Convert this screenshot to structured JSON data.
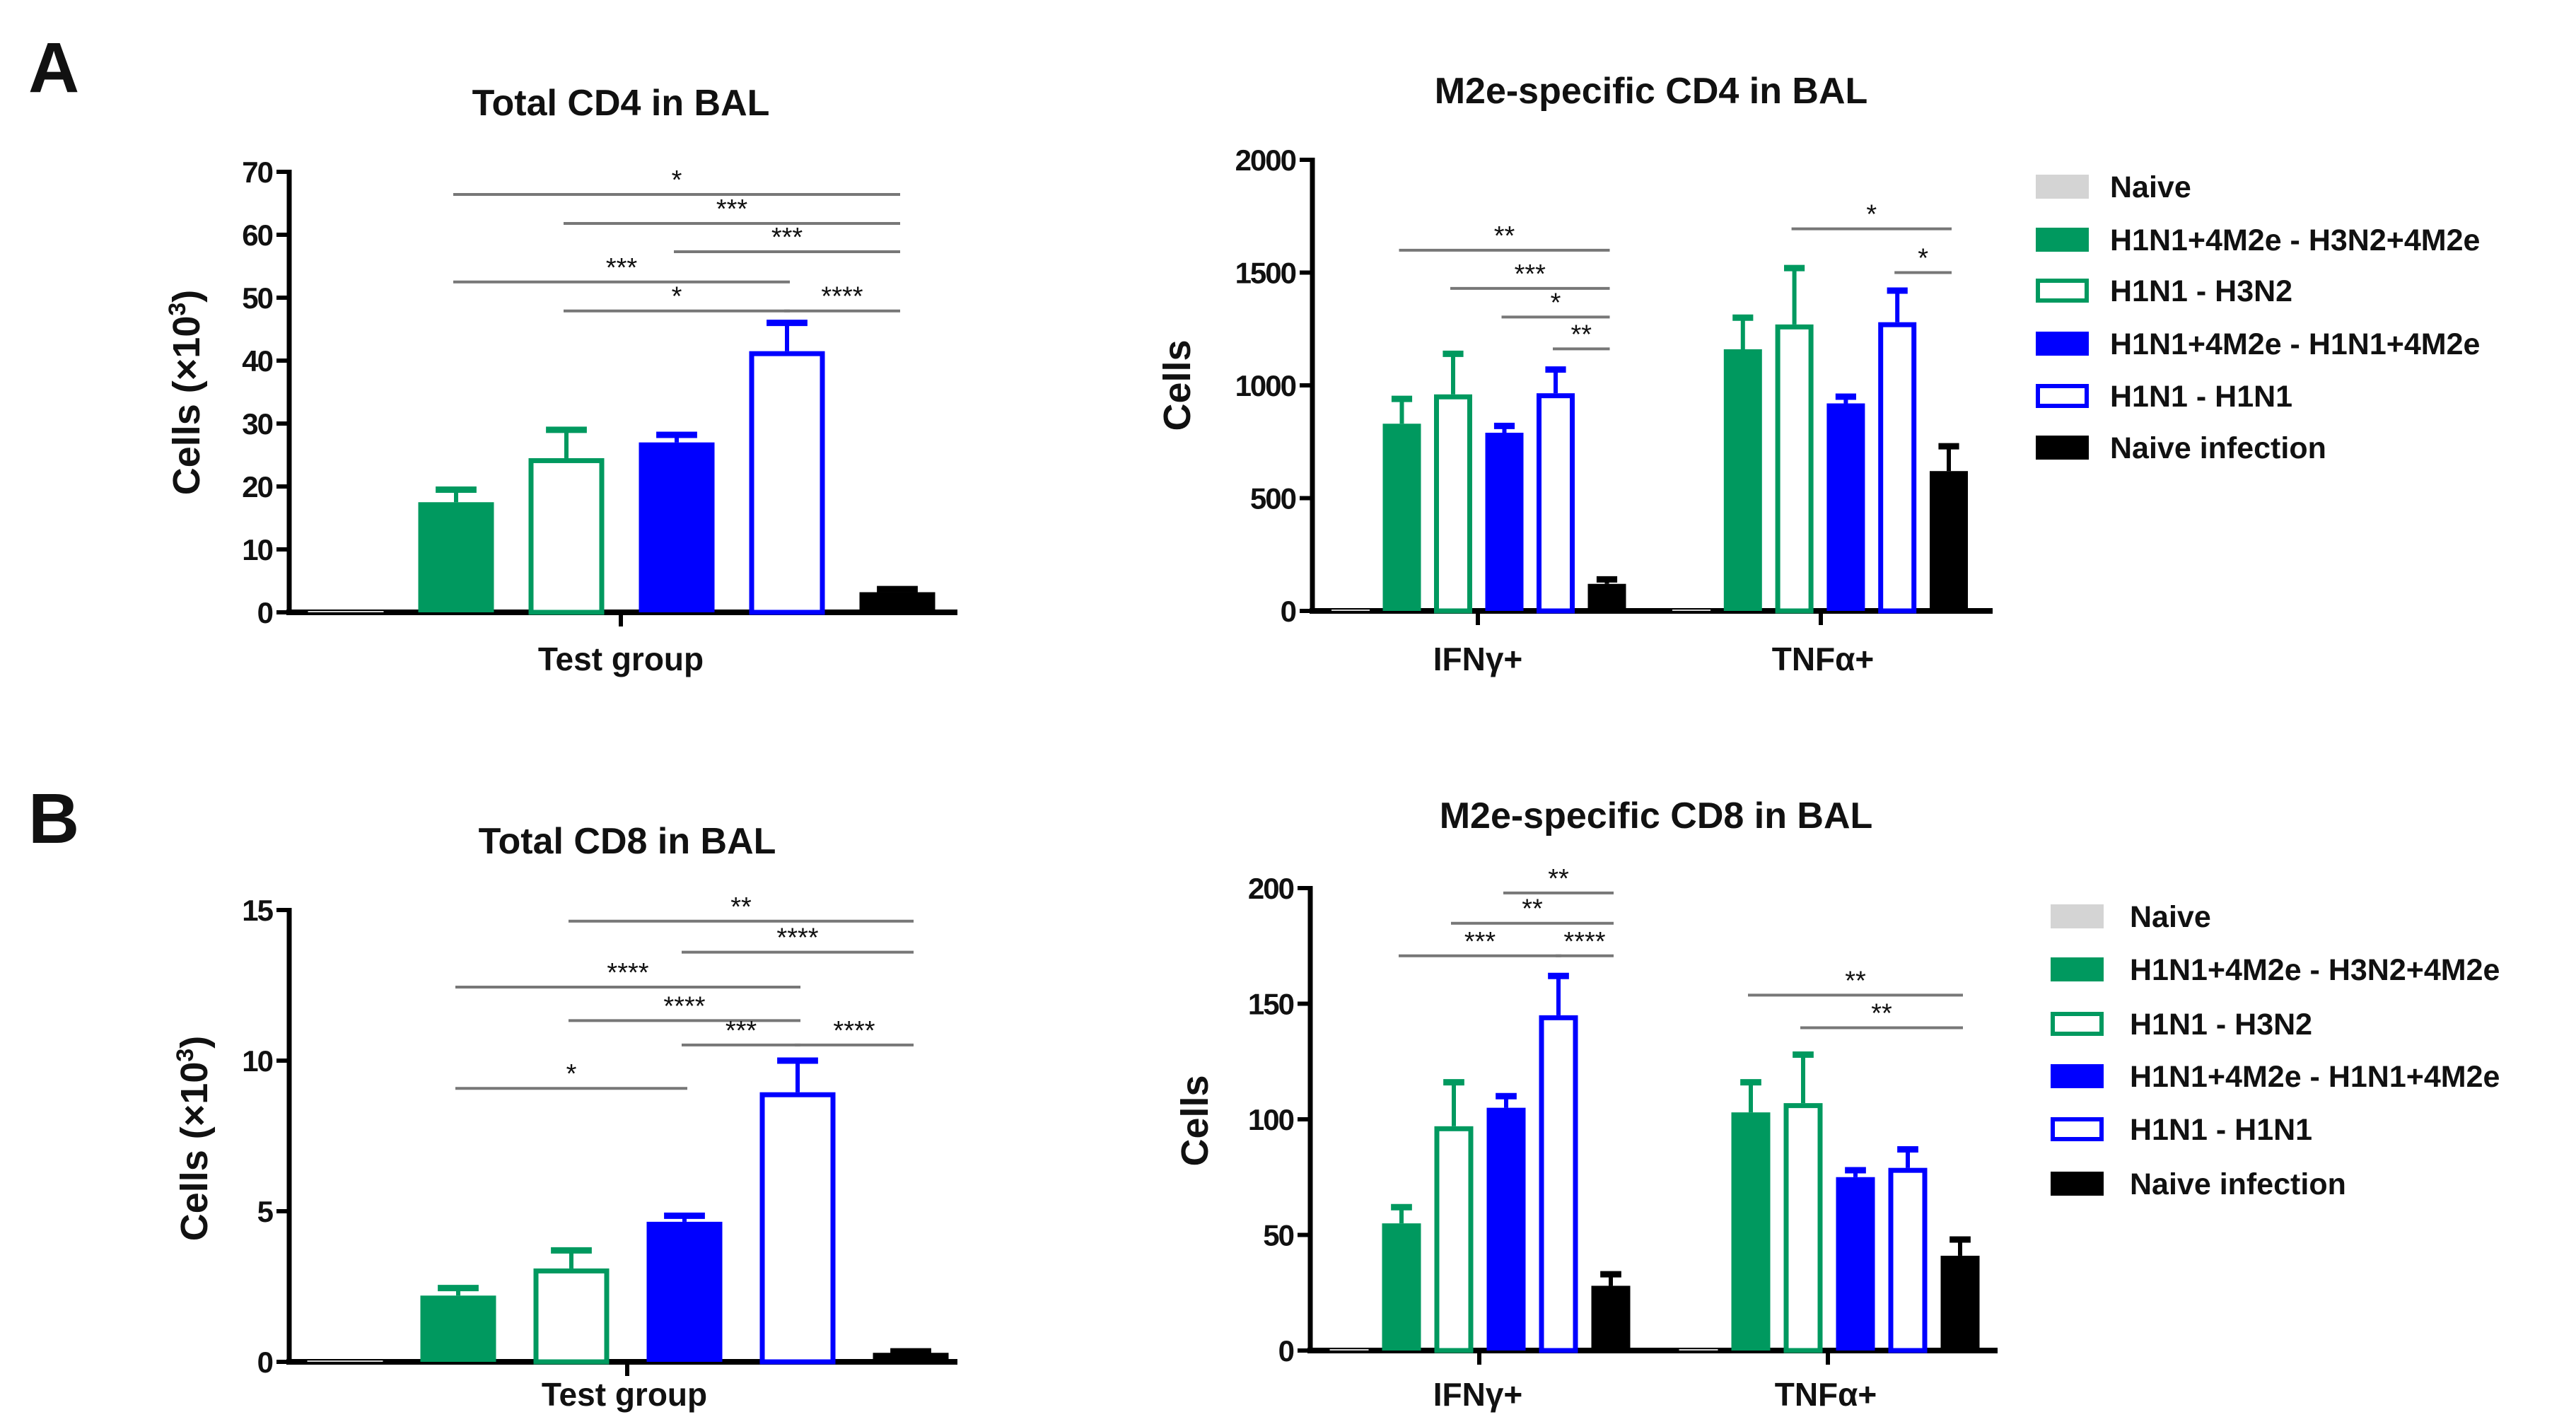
{
  "panel_labels": [
    "A",
    "B"
  ],
  "colors": {
    "naive": "#d4d4d4",
    "green": "#00995f",
    "blue": "#0000ff",
    "black": "#000000",
    "sig_line": "#777777"
  },
  "groups": [
    {
      "name": "Naive",
      "color": "naive",
      "style": "filled"
    },
    {
      "name": "H1N1+4M2e - H3N2+4M2e",
      "color": "green",
      "style": "filled"
    },
    {
      "name": "H1N1 - H3N2",
      "color": "green",
      "style": "open"
    },
    {
      "name": "H1N1+4M2e - H1N1+4M2e",
      "color": "blue",
      "style": "filled"
    },
    {
      "name": "H1N1 - H1N1",
      "color": "blue",
      "style": "open"
    },
    {
      "name": "Naive infection",
      "color": "black",
      "style": "filled"
    }
  ],
  "chart_data": [
    {
      "type": "bar",
      "title": "Total CD4 in BAL",
      "ylabel": "Cells (×10³)",
      "ylabel_base": "Cells (×10",
      "ylabel_exp": "3",
      "ylabel_end": ")",
      "ylim": [
        0,
        70
      ],
      "yticks": [
        0,
        10,
        20,
        30,
        40,
        50,
        60,
        70
      ],
      "categories": [
        "Test group"
      ],
      "series_values": [
        [
          0
        ],
        [
          17.5
        ],
        [
          24.5
        ],
        [
          27
        ],
        [
          41.5
        ],
        [
          3.2
        ]
      ],
      "errors_upper": [
        [
          0
        ],
        [
          19.5
        ],
        [
          29
        ],
        [
          28.2
        ],
        [
          46
        ],
        [
          3.7
        ]
      ],
      "significance": [
        {
          "cat": 0,
          "from": 1,
          "to": 5,
          "y": 66.4,
          "label": "*"
        },
        {
          "cat": 0,
          "from": 2,
          "to": 5,
          "y": 61.8,
          "label": "***"
        },
        {
          "cat": 0,
          "from": 3,
          "to": 5,
          "y": 57.3,
          "label": "***"
        },
        {
          "cat": 0,
          "from": 1,
          "to": 4,
          "y": 52.5,
          "label": "***"
        },
        {
          "cat": 0,
          "from": 2,
          "to": 4,
          "y": 47.9,
          "label": "*"
        },
        {
          "cat": 0,
          "from": 4,
          "to": 5,
          "y": 47.9,
          "label": "****"
        }
      ]
    },
    {
      "type": "bar",
      "title": "M2e-specific CD4 in BAL",
      "ylabel": "Cells",
      "ylim": [
        0,
        2000
      ],
      "yticks": [
        0,
        500,
        1000,
        1500,
        2000
      ],
      "categories": [
        "IFNγ+",
        "TNFα+"
      ],
      "series_values": [
        [
          0,
          0
        ],
        [
          830,
          1160
        ],
        [
          960,
          1270
        ],
        [
          790,
          920
        ],
        [
          965,
          1280
        ],
        [
          120,
          620
        ]
      ],
      "errors_upper": [
        [
          0,
          0
        ],
        [
          940,
          1300
        ],
        [
          1140,
          1520
        ],
        [
          820,
          950
        ],
        [
          1070,
          1420
        ],
        [
          140,
          730
        ]
      ],
      "legend": "right",
      "significance": [
        {
          "cat": 0,
          "from": 1,
          "to": 5,
          "y": 1599,
          "label": "**"
        },
        {
          "cat": 0,
          "from": 2,
          "to": 5,
          "y": 1430,
          "label": "***"
        },
        {
          "cat": 0,
          "from": 3,
          "to": 5,
          "y": 1303,
          "label": "*"
        },
        {
          "cat": 0,
          "from": 4,
          "to": 5,
          "y": 1162,
          "label": "**"
        },
        {
          "cat": 1,
          "from": 2,
          "to": 5,
          "y": 1694,
          "label": "*"
        },
        {
          "cat": 1,
          "from": 4,
          "to": 5,
          "y": 1500,
          "label": "*"
        }
      ]
    },
    {
      "type": "bar",
      "title": "Total CD8 in BAL",
      "ylabel": "Cells (×10³)",
      "ylabel_base": "Cells (×10",
      "ylabel_exp": "3",
      "ylabel_end": ")",
      "ylim": [
        0,
        15
      ],
      "yticks": [
        0,
        5,
        10,
        15
      ],
      "categories": [
        "Test group"
      ],
      "series_values": [
        [
          0
        ],
        [
          2.2
        ],
        [
          3.1
        ],
        [
          4.65
        ],
        [
          8.95
        ],
        [
          0.3
        ]
      ],
      "errors_upper": [
        [
          0
        ],
        [
          2.45
        ],
        [
          3.7
        ],
        [
          4.85
        ],
        [
          10
        ],
        [
          0.35
        ]
      ],
      "significance": [
        {
          "cat": 0,
          "from": 2,
          "to": 5,
          "y": 14.63,
          "label": "**"
        },
        {
          "cat": 0,
          "from": 3,
          "to": 5,
          "y": 13.6,
          "label": "****"
        },
        {
          "cat": 0,
          "from": 1,
          "to": 4,
          "y": 12.44,
          "label": "****"
        },
        {
          "cat": 0,
          "from": 2,
          "to": 4,
          "y": 11.33,
          "label": "****"
        },
        {
          "cat": 0,
          "from": 3,
          "to": 4,
          "y": 10.52,
          "label": "***"
        },
        {
          "cat": 0,
          "from": 4,
          "to": 5,
          "y": 10.52,
          "label": "****"
        },
        {
          "cat": 0,
          "from": 1,
          "to": 3,
          "y": 9.08,
          "label": "*"
        }
      ]
    },
    {
      "type": "bar",
      "title": "M2e-specific CD8 in BAL",
      "ylabel": "Cells",
      "ylim": [
        0,
        200
      ],
      "yticks": [
        0,
        50,
        100,
        150,
        200
      ],
      "categories": [
        "IFNγ+",
        "TNFα+"
      ],
      "series_values": [
        [
          0,
          0
        ],
        [
          55,
          103
        ],
        [
          97,
          107
        ],
        [
          105,
          75
        ],
        [
          145,
          79
        ],
        [
          28,
          41
        ]
      ],
      "errors_upper": [
        [
          0,
          0
        ],
        [
          62,
          116
        ],
        [
          116,
          128
        ],
        [
          110,
          78
        ],
        [
          162,
          87
        ],
        [
          33,
          48
        ]
      ],
      "legend": "right",
      "significance": [
        {
          "cat": 0,
          "from": 3,
          "to": 5,
          "y": 197.9,
          "label": "**"
        },
        {
          "cat": 0,
          "from": 2,
          "to": 5,
          "y": 184.8,
          "label": "**"
        },
        {
          "cat": 0,
          "from": 1,
          "to": 4,
          "y": 170.7,
          "label": "***"
        },
        {
          "cat": 0,
          "from": 4,
          "to": 5,
          "y": 170.7,
          "label": "****"
        },
        {
          "cat": 1,
          "from": 1,
          "to": 5,
          "y": 153.7,
          "label": "**"
        },
        {
          "cat": 1,
          "from": 2,
          "to": 5,
          "y": 139.6,
          "label": "**"
        }
      ]
    }
  ]
}
